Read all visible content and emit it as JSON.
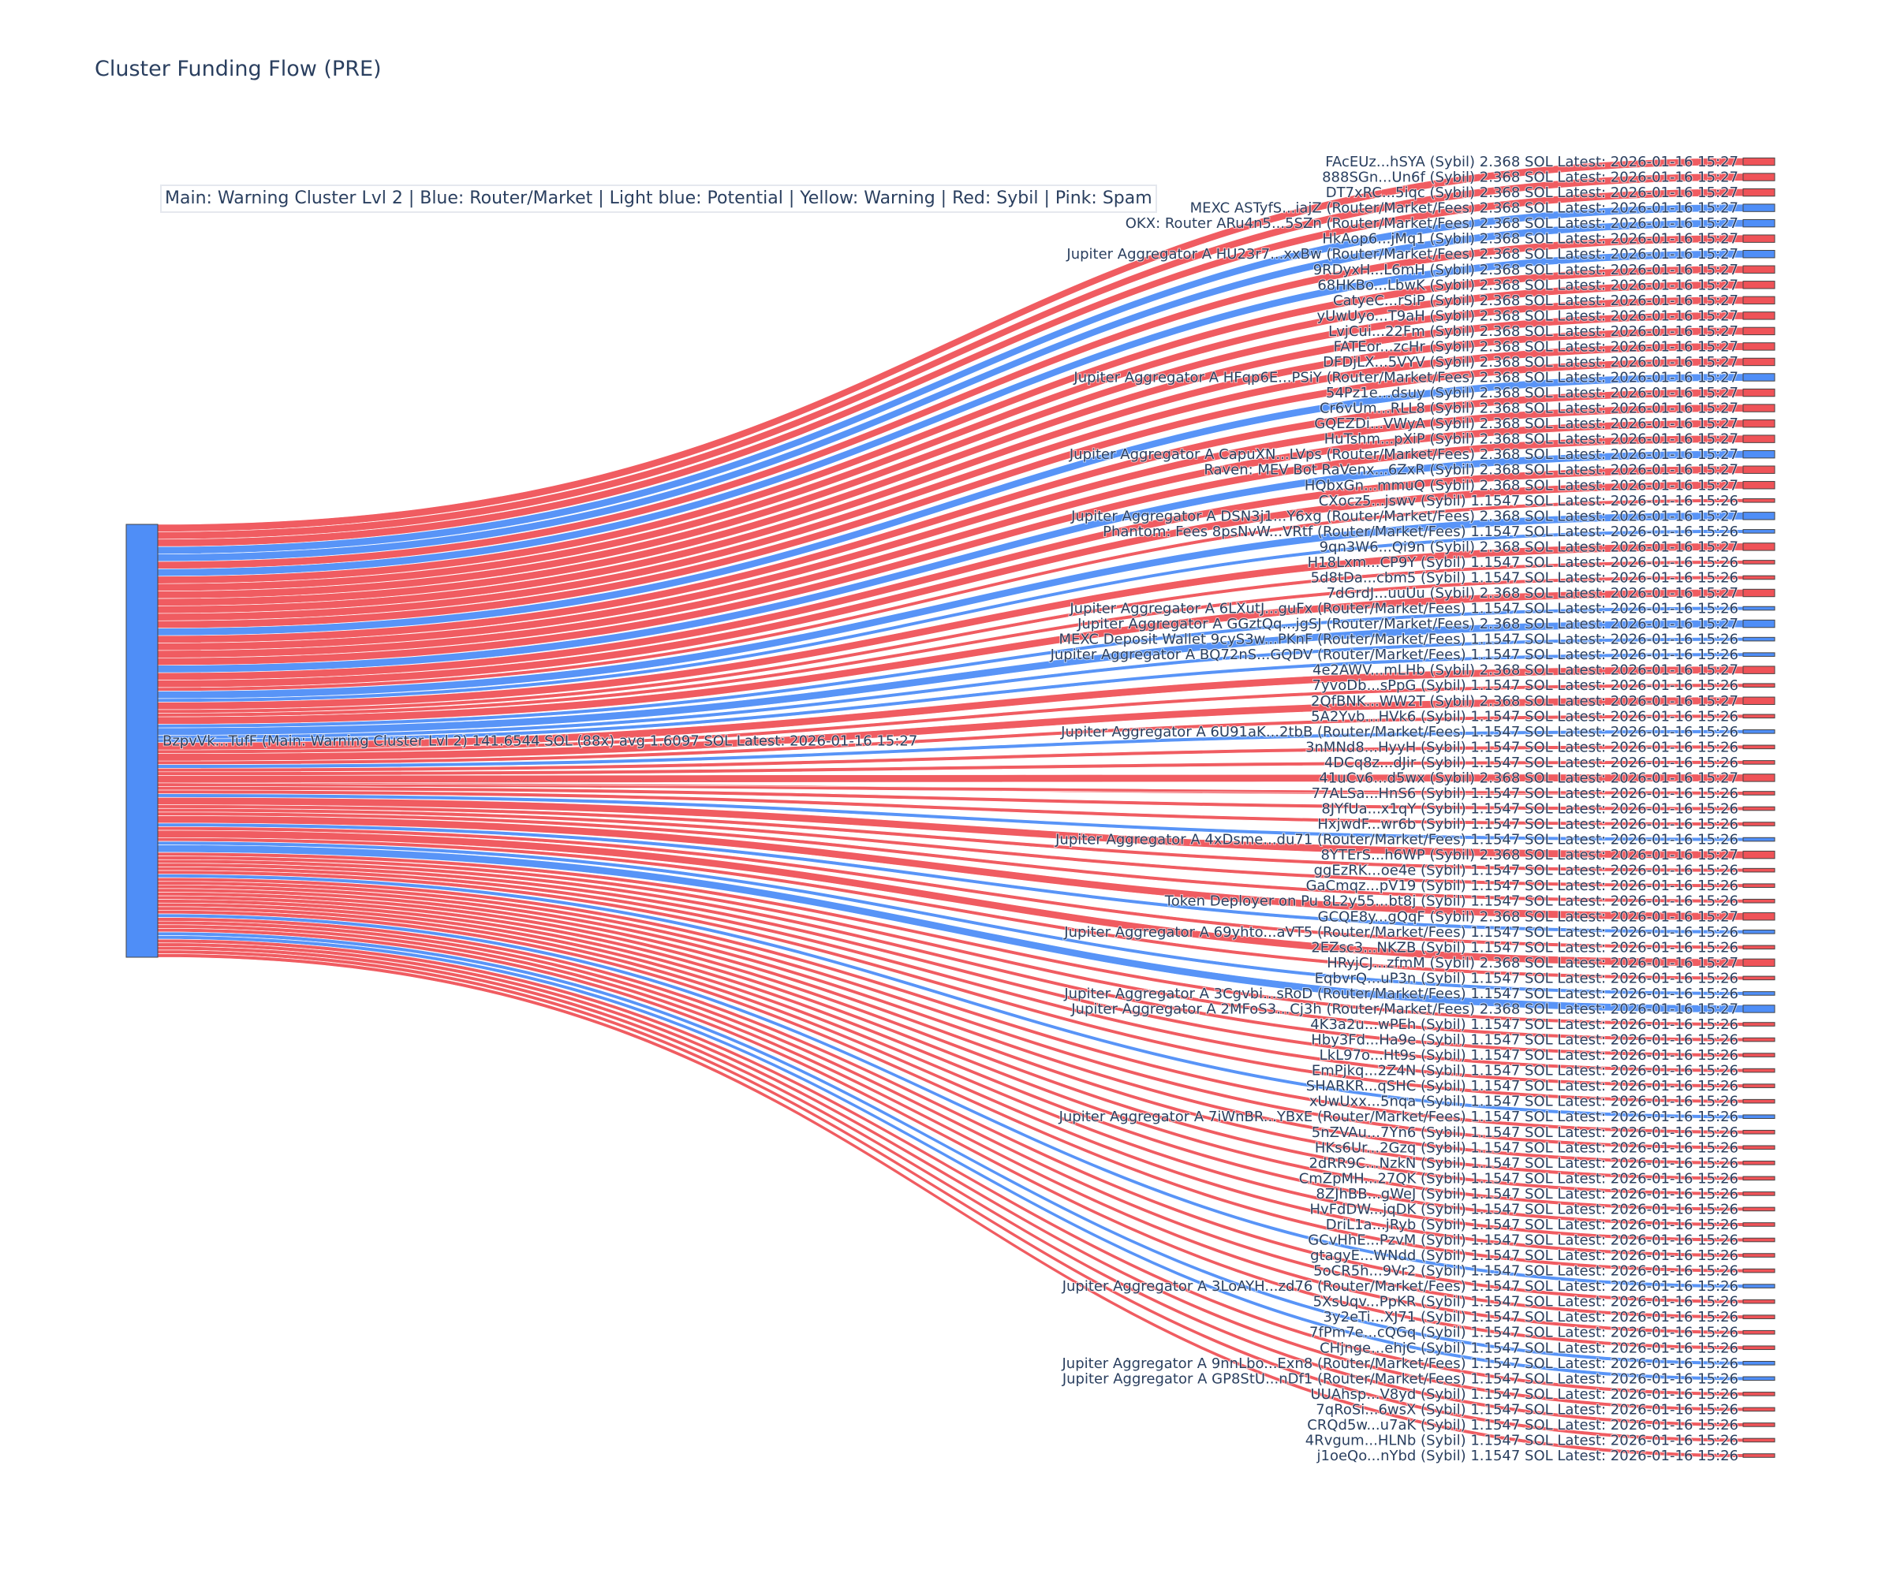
{
  "title": "Cluster Funding Flow (PRE)",
  "legend": "Main: Warning Cluster Lvl 2  |  Blue: Router/Market | Light blue: Potential | Yellow: Warning | Red: Sybil | Pink: Spam",
  "colors": {
    "sybil": "#ef5358",
    "router": "#4f8ef7",
    "main": "#4f8ef7"
  },
  "chart_data": {
    "type": "sankey",
    "title": "Cluster Funding Flow (PRE)",
    "source": {
      "label": "BzpvVk...TufF (Main: Warning Cluster Lvl 2) 141.6544 SOL (88x) avg 1.6097 SOL Latest: 2026-01-16 15:27",
      "type": "Main",
      "amount": 141.6544
    },
    "targets": [
      {
        "label": "FAcEUz...hSYA (Sybil) 2.368 SOL Latest: 2026-01-16 15:27",
        "type": "Sybil",
        "amount": 2.368
      },
      {
        "label": "888SGn...Un6f (Sybil) 2.368 SOL Latest: 2026-01-16 15:27",
        "type": "Sybil",
        "amount": 2.368
      },
      {
        "label": "DT7xRC...5iqc (Sybil) 2.368 SOL Latest: 2026-01-16 15:27",
        "type": "Sybil",
        "amount": 2.368
      },
      {
        "label": "MEXC ASTyfS...iajZ (Router/Market/Fees) 2.368 SOL Latest: 2026-01-16 15:27",
        "type": "Router",
        "amount": 2.368
      },
      {
        "label": "OKX: Router ARu4n5...5SZn (Router/Market/Fees) 2.368 SOL Latest: 2026-01-16 15:27",
        "type": "Router",
        "amount": 2.368
      },
      {
        "label": "HkAop6...jMq1 (Sybil) 2.368 SOL Latest: 2026-01-16 15:27",
        "type": "Sybil",
        "amount": 2.368
      },
      {
        "label": "Jupiter Aggregator A HU23r7...xxBw (Router/Market/Fees) 2.368 SOL Latest: 2026-01-16 15:27",
        "type": "Router",
        "amount": 2.368
      },
      {
        "label": "9RDyxH...L6mH (Sybil) 2.368 SOL Latest: 2026-01-16 15:27",
        "type": "Sybil",
        "amount": 2.368
      },
      {
        "label": "68HKBo...LbwK (Sybil) 2.368 SOL Latest: 2026-01-16 15:27",
        "type": "Sybil",
        "amount": 2.368
      },
      {
        "label": "CatyeC...rSiP (Sybil) 2.368 SOL Latest: 2026-01-16 15:27",
        "type": "Sybil",
        "amount": 2.368
      },
      {
        "label": "yUwUyo...T9aH (Sybil) 2.368 SOL Latest: 2026-01-16 15:27",
        "type": "Sybil",
        "amount": 2.368
      },
      {
        "label": "LvjCui...22Fm (Sybil) 2.368 SOL Latest: 2026-01-16 15:27",
        "type": "Sybil",
        "amount": 2.368
      },
      {
        "label": "FATEor...zcHr (Sybil) 2.368 SOL Latest: 2026-01-16 15:27",
        "type": "Sybil",
        "amount": 2.368
      },
      {
        "label": "DFDjLX...5VYV (Sybil) 2.368 SOL Latest: 2026-01-16 15:27",
        "type": "Sybil",
        "amount": 2.368
      },
      {
        "label": "Jupiter Aggregator A HFqp6E...PSiY (Router/Market/Fees) 2.368 SOL Latest: 2026-01-16 15:27",
        "type": "Router",
        "amount": 2.368
      },
      {
        "label": "54Pz1e...dsuy (Sybil) 2.368 SOL Latest: 2026-01-16 15:27",
        "type": "Sybil",
        "amount": 2.368
      },
      {
        "label": "Cr6vUm...RLL8 (Sybil) 2.368 SOL Latest: 2026-01-16 15:27",
        "type": "Sybil",
        "amount": 2.368
      },
      {
        "label": "GQEZDi...VWyA (Sybil) 2.368 SOL Latest: 2026-01-16 15:27",
        "type": "Sybil",
        "amount": 2.368
      },
      {
        "label": "HuTshm...pXiP (Sybil) 2.368 SOL Latest: 2026-01-16 15:27",
        "type": "Sybil",
        "amount": 2.368
      },
      {
        "label": "Jupiter Aggregator A CapuXN...LVps (Router/Market/Fees) 2.368 SOL Latest: 2026-01-16 15:27",
        "type": "Router",
        "amount": 2.368
      },
      {
        "label": "Raven: MEV Bot RaVenx...6ZxR (Sybil) 2.368 SOL Latest: 2026-01-16 15:27",
        "type": "Sybil",
        "amount": 2.368
      },
      {
        "label": "HQbxGn...mmuQ (Sybil) 2.368 SOL Latest: 2026-01-16 15:27",
        "type": "Sybil",
        "amount": 2.368
      },
      {
        "label": "CXocz5...jswv (Sybil) 1.1547 SOL Latest: 2026-01-16 15:26",
        "type": "Sybil",
        "amount": 1.1547
      },
      {
        "label": "Jupiter Aggregator A DSN3j1...Y6xg (Router/Market/Fees) 2.368 SOL Latest: 2026-01-16 15:27",
        "type": "Router",
        "amount": 2.368
      },
      {
        "label": "Phantom: Fees 8psNvW...VRtf (Router/Market/Fees) 1.1547 SOL Latest: 2026-01-16 15:26",
        "type": "Router",
        "amount": 1.1547
      },
      {
        "label": "9qn3W6...Qi9n (Sybil) 2.368 SOL Latest: 2026-01-16 15:27",
        "type": "Sybil",
        "amount": 2.368
      },
      {
        "label": "H18Lxm...CP9Y (Sybil) 1.1547 SOL Latest: 2026-01-16 15:26",
        "type": "Sybil",
        "amount": 1.1547
      },
      {
        "label": "5d8tDa...cbm5 (Sybil) 1.1547 SOL Latest: 2026-01-16 15:26",
        "type": "Sybil",
        "amount": 1.1547
      },
      {
        "label": "7dGrdJ...uuUu (Sybil) 2.368 SOL Latest: 2026-01-16 15:27",
        "type": "Sybil",
        "amount": 2.368
      },
      {
        "label": "Jupiter Aggregator A 6LXutJ...guFx (Router/Market/Fees) 1.1547 SOL Latest: 2026-01-16 15:26",
        "type": "Router",
        "amount": 1.1547
      },
      {
        "label": "Jupiter Aggregator A GGztQq...jgSJ (Router/Market/Fees) 2.368 SOL Latest: 2026-01-16 15:27",
        "type": "Router",
        "amount": 2.368
      },
      {
        "label": "MEXC Deposit Wallet 9cyS3w...PKnF (Router/Market/Fees) 1.1547 SOL Latest: 2026-01-16 15:26",
        "type": "Router",
        "amount": 1.1547
      },
      {
        "label": "Jupiter Aggregator A BQ72nS...GQDV (Router/Market/Fees) 1.1547 SOL Latest: 2026-01-16 15:26",
        "type": "Router",
        "amount": 1.1547
      },
      {
        "label": "4e2AWV...mLHb (Sybil) 2.368 SOL Latest: 2026-01-16 15:27",
        "type": "Sybil",
        "amount": 2.368
      },
      {
        "label": "7yvoDb...sPpG (Sybil) 1.1547 SOL Latest: 2026-01-16 15:26",
        "type": "Sybil",
        "amount": 1.1547
      },
      {
        "label": "2QfBNK...WW2T (Sybil) 2.368 SOL Latest: 2026-01-16 15:27",
        "type": "Sybil",
        "amount": 2.368
      },
      {
        "label": "5A2Yvb...HVk6 (Sybil) 1.1547 SOL Latest: 2026-01-16 15:26",
        "type": "Sybil",
        "amount": 1.1547
      },
      {
        "label": "Jupiter Aggregator A 6U91aK...2tbB (Router/Market/Fees) 1.1547 SOL Latest: 2026-01-16 15:26",
        "type": "Router",
        "amount": 1.1547
      },
      {
        "label": "3nMNd8...HyyH (Sybil) 1.1547 SOL Latest: 2026-01-16 15:26",
        "type": "Sybil",
        "amount": 1.1547
      },
      {
        "label": "4DCq8z...dJir (Sybil) 1.1547 SOL Latest: 2026-01-16 15:26",
        "type": "Sybil",
        "amount": 1.1547
      },
      {
        "label": "41uCv6...d5wx (Sybil) 2.368 SOL Latest: 2026-01-16 15:27",
        "type": "Sybil",
        "amount": 2.368
      },
      {
        "label": "77ALSa...HnS6 (Sybil) 1.1547 SOL Latest: 2026-01-16 15:26",
        "type": "Sybil",
        "amount": 1.1547
      },
      {
        "label": "8JYfUa...x1qY (Sybil) 1.1547 SOL Latest: 2026-01-16 15:26",
        "type": "Sybil",
        "amount": 1.1547
      },
      {
        "label": "HxjwdF...wr6b (Sybil) 1.1547 SOL Latest: 2026-01-16 15:26",
        "type": "Sybil",
        "amount": 1.1547
      },
      {
        "label": "Jupiter Aggregator A 4xDsme...du71 (Router/Market/Fees) 1.1547 SOL Latest: 2026-01-16 15:26",
        "type": "Router",
        "amount": 1.1547
      },
      {
        "label": "8YTErS...h6WP (Sybil) 2.368 SOL Latest: 2026-01-16 15:27",
        "type": "Sybil",
        "amount": 2.368
      },
      {
        "label": "ggEzRK...oe4e (Sybil) 1.1547 SOL Latest: 2026-01-16 15:26",
        "type": "Sybil",
        "amount": 1.1547
      },
      {
        "label": "GaCmqz...pV19 (Sybil) 1.1547 SOL Latest: 2026-01-16 15:26",
        "type": "Sybil",
        "amount": 1.1547
      },
      {
        "label": "Token Deployer on Pu 8L2y55...bt8j (Sybil) 1.1547 SOL Latest: 2026-01-16 15:26",
        "type": "Sybil",
        "amount": 1.1547
      },
      {
        "label": "GCQE8y...gQqF (Sybil) 2.368 SOL Latest: 2026-01-16 15:27",
        "type": "Sybil",
        "amount": 2.368
      },
      {
        "label": "Jupiter Aggregator A 69yhto...aVT5 (Router/Market/Fees) 1.1547 SOL Latest: 2026-01-16 15:26",
        "type": "Router",
        "amount": 1.1547
      },
      {
        "label": "2EZsc3...NKZB (Sybil) 1.1547 SOL Latest: 2026-01-16 15:26",
        "type": "Sybil",
        "amount": 1.1547
      },
      {
        "label": "HRyjCJ...zfmM (Sybil) 2.368 SOL Latest: 2026-01-16 15:27",
        "type": "Sybil",
        "amount": 2.368
      },
      {
        "label": "EqbvrQ...uP3n (Sybil) 1.1547 SOL Latest: 2026-01-16 15:26",
        "type": "Sybil",
        "amount": 1.1547
      },
      {
        "label": "Jupiter Aggregator A 3Cgvbi...sRoD (Router/Market/Fees) 1.1547 SOL Latest: 2026-01-16 15:26",
        "type": "Router",
        "amount": 1.1547
      },
      {
        "label": "Jupiter Aggregator A 2MFoS3...Cj3h (Router/Market/Fees) 2.368 SOL Latest: 2026-01-16 15:27",
        "type": "Router",
        "amount": 2.368
      },
      {
        "label": "4K3a2u...wPEh (Sybil) 1.1547 SOL Latest: 2026-01-16 15:26",
        "type": "Sybil",
        "amount": 1.1547
      },
      {
        "label": "Hby3Fd...Ha9e (Sybil) 1.1547 SOL Latest: 2026-01-16 15:26",
        "type": "Sybil",
        "amount": 1.1547
      },
      {
        "label": "LkL97o...Ht9s (Sybil) 1.1547 SOL Latest: 2026-01-16 15:26",
        "type": "Sybil",
        "amount": 1.1547
      },
      {
        "label": "EmPjkq...2Z4N (Sybil) 1.1547 SOL Latest: 2026-01-16 15:26",
        "type": "Sybil",
        "amount": 1.1547
      },
      {
        "label": "SHARKR...qSHC (Sybil) 1.1547 SOL Latest: 2026-01-16 15:26",
        "type": "Sybil",
        "amount": 1.1547
      },
      {
        "label": "xUwUxx...5nqa (Sybil) 1.1547 SOL Latest: 2026-01-16 15:26",
        "type": "Sybil",
        "amount": 1.1547
      },
      {
        "label": "Jupiter Aggregator A 7iWnBR...YBxE (Router/Market/Fees) 1.1547 SOL Latest: 2026-01-16 15:26",
        "type": "Router",
        "amount": 1.1547
      },
      {
        "label": "5nZVAu...7Yn6 (Sybil) 1.1547 SOL Latest: 2026-01-16 15:26",
        "type": "Sybil",
        "amount": 1.1547
      },
      {
        "label": "HKs6Ur...2Gzq (Sybil) 1.1547 SOL Latest: 2026-01-16 15:26",
        "type": "Sybil",
        "amount": 1.1547
      },
      {
        "label": "2dRR9C...NzkN (Sybil) 1.1547 SOL Latest: 2026-01-16 15:26",
        "type": "Sybil",
        "amount": 1.1547
      },
      {
        "label": "CmZpMH...27QK (Sybil) 1.1547 SOL Latest: 2026-01-16 15:26",
        "type": "Sybil",
        "amount": 1.1547
      },
      {
        "label": "8ZJhBB...gWeJ (Sybil) 1.1547 SOL Latest: 2026-01-16 15:26",
        "type": "Sybil",
        "amount": 1.1547
      },
      {
        "label": "HvFdDW...jqDK (Sybil) 1.1547 SOL Latest: 2026-01-16 15:26",
        "type": "Sybil",
        "amount": 1.1547
      },
      {
        "label": "DriL1a...jRyb (Sybil) 1.1547 SOL Latest: 2026-01-16 15:26",
        "type": "Sybil",
        "amount": 1.1547
      },
      {
        "label": "GCvHhE...PzvM (Sybil) 1.1547 SOL Latest: 2026-01-16 15:26",
        "type": "Sybil",
        "amount": 1.1547
      },
      {
        "label": "gtagyE...WNdd (Sybil) 1.1547 SOL Latest: 2026-01-16 15:26",
        "type": "Sybil",
        "amount": 1.1547
      },
      {
        "label": "5oCR5h...9Vr2 (Sybil) 1.1547 SOL Latest: 2026-01-16 15:26",
        "type": "Sybil",
        "amount": 1.1547
      },
      {
        "label": "Jupiter Aggregator A 3LoAYH...zd76 (Router/Market/Fees) 1.1547 SOL Latest: 2026-01-16 15:26",
        "type": "Router",
        "amount": 1.1547
      },
      {
        "label": "5XsUqv...PpKR (Sybil) 1.1547 SOL Latest: 2026-01-16 15:26",
        "type": "Sybil",
        "amount": 1.1547
      },
      {
        "label": "3y2eTi...XJ71 (Sybil) 1.1547 SOL Latest: 2026-01-16 15:26",
        "type": "Sybil",
        "amount": 1.1547
      },
      {
        "label": "7fPm7e...cQGq (Sybil) 1.1547 SOL Latest: 2026-01-16 15:26",
        "type": "Sybil",
        "amount": 1.1547
      },
      {
        "label": "CHjnge...ehjC (Sybil) 1.1547 SOL Latest: 2026-01-16 15:26",
        "type": "Sybil",
        "amount": 1.1547
      },
      {
        "label": "Jupiter Aggregator A 9nnLbo...Exn8 (Router/Market/Fees) 1.1547 SOL Latest: 2026-01-16 15:26",
        "type": "Router",
        "amount": 1.1547
      },
      {
        "label": "Jupiter Aggregator A GP8StU...nDf1 (Router/Market/Fees) 1.1547 SOL Latest: 2026-01-16 15:26",
        "type": "Router",
        "amount": 1.1547
      },
      {
        "label": "UUAhsp...V8yd (Sybil) 1.1547 SOL Latest: 2026-01-16 15:26",
        "type": "Sybil",
        "amount": 1.1547
      },
      {
        "label": "7qRoSi...6wsX (Sybil) 1.1547 SOL Latest: 2026-01-16 15:26",
        "type": "Sybil",
        "amount": 1.1547
      },
      {
        "label": "CRQd5w...u7aK (Sybil) 1.1547 SOL Latest: 2026-01-16 15:26",
        "type": "Sybil",
        "amount": 1.1547
      },
      {
        "label": "4Rvgum...HLNb (Sybil) 1.1547 SOL Latest: 2026-01-16 15:26",
        "type": "Sybil",
        "amount": 1.1547
      },
      {
        "label": "j1oeQo...nYbd (Sybil) 1.1547 SOL Latest: 2026-01-16 15:26",
        "type": "Sybil",
        "amount": 1.1547
      }
    ]
  }
}
